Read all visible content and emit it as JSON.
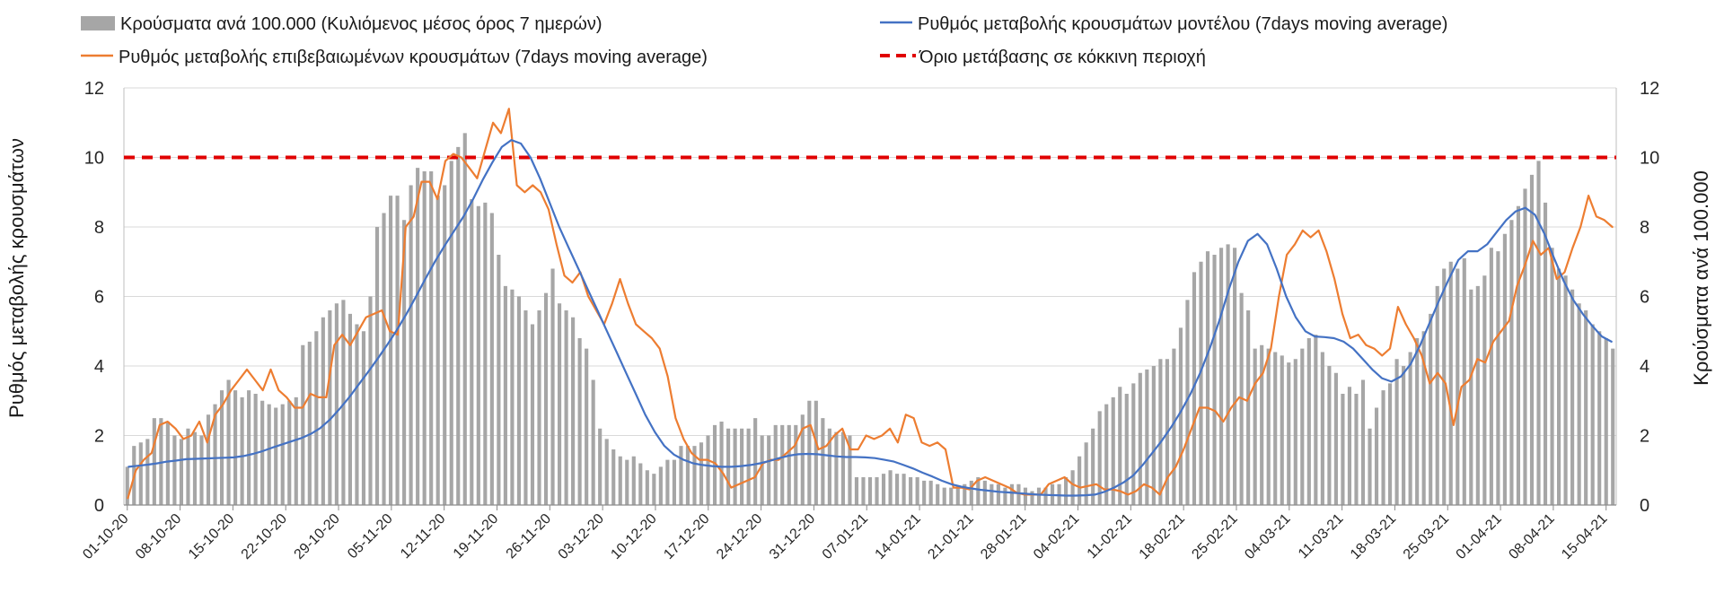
{
  "chart_data": {
    "type": "bar+line",
    "title": "",
    "ylabel_left": "Ρυθμός μεταβολής κρουσμάτων",
    "ylabel_right": "Κρούσματα ανά 100.000",
    "ylim": [
      0,
      12
    ],
    "yticks": [
      0,
      2,
      4,
      6,
      8,
      10,
      12
    ],
    "threshold": 10,
    "colors": {
      "bars": "#a6a6a6",
      "model": "#4472c4",
      "confirmed": "#ed7d31",
      "threshold": "#e00000",
      "grid": "#d9d9d9"
    },
    "legend": [
      {
        "key": "bars",
        "label": "Κρούσματα ανά 100.000 (Κυλιόμενος μέσος όρος 7 ημερών)"
      },
      {
        "key": "model",
        "label": "Ρυθμός μεταβολής κρουσμάτων μοντέλου (7days moving average)"
      },
      {
        "key": "confirmed",
        "label": "Ρυθμός μεταβολής επιβεβαιωμένων κρουσμάτων (7days moving average)"
      },
      {
        "key": "threshold",
        "label": "Όριο μετάβασης σε κόκκινη περιοχή"
      }
    ],
    "x_tick_labels": [
      "01-10-20",
      "08-10-20",
      "15-10-20",
      "22-10-20",
      "29-10-20",
      "05-11-20",
      "12-11-20",
      "19-11-20",
      "26-11-20",
      "03-12-20",
      "10-12-20",
      "17-12-20",
      "24-12-20",
      "31-12-20",
      "07-01-21",
      "14-01-21",
      "21-01-21",
      "28-01-21",
      "04-02-21",
      "11-02-21",
      "18-02-21",
      "25-02-21",
      "04-03-21",
      "11-03-21",
      "18-03-21",
      "25-03-21",
      "01-04-21",
      "08-04-21",
      "15-04-21"
    ],
    "series": [
      {
        "name": "Κρούσματα ανά 100.000 (Κυλιόμενος μέσος όρος 7 ημερών)",
        "kind": "bar",
        "values": [
          1.1,
          1.7,
          1.8,
          1.9,
          2.5,
          2.5,
          2.4,
          2.0,
          1.9,
          2.2,
          2.1,
          2.0,
          2.6,
          2.9,
          3.3,
          3.6,
          3.3,
          3.1,
          3.3,
          3.2,
          3.0,
          2.9,
          2.8,
          2.9,
          3.0,
          3.1,
          4.6,
          4.7,
          5.0,
          5.4,
          5.6,
          5.8,
          5.9,
          5.5,
          5.2,
          5.0,
          6.0,
          8.0,
          8.4,
          8.9,
          8.9,
          8.2,
          9.2,
          9.7,
          9.6,
          9.6,
          8.9,
          9.2,
          9.9,
          10.3,
          10.7,
          8.8,
          8.6,
          8.7,
          8.4,
          7.2,
          6.3,
          6.2,
          6.0,
          5.6,
          5.2,
          5.6,
          6.1,
          6.8,
          5.8,
          5.6,
          5.4,
          4.8,
          4.5,
          3.6,
          2.2,
          1.9,
          1.6,
          1.4,
          1.3,
          1.4,
          1.2,
          1.0,
          0.9,
          1.1,
          1.3,
          1.3,
          1.7,
          1.7,
          1.7,
          1.8,
          2.0,
          2.3,
          2.4,
          2.2,
          2.2,
          2.2,
          2.2,
          2.5,
          2.0,
          2.0,
          2.3,
          2.3,
          2.3,
          2.3,
          2.6,
          3.0,
          3.0,
          2.5,
          2.2,
          2.1,
          2.1,
          2.0,
          0.8,
          0.8,
          0.8,
          0.8,
          0.9,
          1.0,
          0.9,
          0.9,
          0.8,
          0.8,
          0.7,
          0.7,
          0.6,
          0.5,
          0.5,
          0.5,
          0.6,
          0.7,
          0.8,
          0.7,
          0.6,
          0.6,
          0.5,
          0.6,
          0.6,
          0.5,
          0.4,
          0.5,
          0.5,
          0.6,
          0.6,
          0.8,
          1.0,
          1.4,
          1.8,
          2.2,
          2.7,
          2.9,
          3.1,
          3.4,
          3.2,
          3.5,
          3.8,
          3.9,
          4.0,
          4.2,
          4.2,
          4.5,
          5.1,
          5.9,
          6.7,
          7.0,
          7.3,
          7.2,
          7.4,
          7.5,
          7.4,
          6.1,
          5.6,
          4.5,
          4.6,
          4.5,
          4.4,
          4.3,
          4.1,
          4.2,
          4.5,
          4.8,
          4.9,
          4.4,
          4.0,
          3.8,
          3.2,
          3.4,
          3.2,
          3.6,
          2.2,
          2.8,
          3.3,
          3.5,
          4.2,
          4.0,
          4.4,
          4.8,
          5.0,
          5.5,
          6.3,
          6.8,
          7.0,
          6.8,
          7.1,
          6.2,
          6.3,
          6.6,
          7.4,
          7.3,
          7.8,
          8.2,
          8.6,
          9.1,
          9.5,
          9.9,
          8.7,
          7.4,
          6.8,
          6.6,
          6.2,
          5.8,
          5.6,
          5.2,
          5.0,
          4.8,
          4.5
        ]
      },
      {
        "name": "Ρυθμός μεταβολής κρουσμάτων μοντέλου (7days moving average)",
        "kind": "line",
        "values": [
          1.1,
          1.13,
          1.16,
          1.2,
          1.25,
          1.28,
          1.32,
          1.33,
          1.34,
          1.35,
          1.36,
          1.37,
          1.41,
          1.47,
          1.55,
          1.65,
          1.74,
          1.83,
          1.92,
          2.04,
          2.21,
          2.45,
          2.75,
          3.08,
          3.45,
          3.82,
          4.2,
          4.6,
          5.02,
          5.48,
          5.98,
          6.5,
          7.0,
          7.45,
          7.88,
          8.3,
          8.8,
          9.35,
          9.85,
          10.3,
          10.5,
          10.4,
          10.0,
          9.4,
          8.7,
          8.0,
          7.4,
          6.8,
          6.2,
          5.6,
          5.0,
          4.4,
          3.8,
          3.2,
          2.6,
          2.1,
          1.7,
          1.45,
          1.3,
          1.2,
          1.15,
          1.12,
          1.1,
          1.1,
          1.12,
          1.15,
          1.2,
          1.27,
          1.35,
          1.42,
          1.46,
          1.47,
          1.46,
          1.43,
          1.4,
          1.38,
          1.38,
          1.37,
          1.35,
          1.3,
          1.25,
          1.15,
          1.05,
          0.93,
          0.82,
          0.7,
          0.6,
          0.53,
          0.48,
          0.44,
          0.41,
          0.38,
          0.36,
          0.34,
          0.32,
          0.3,
          0.29,
          0.28,
          0.27,
          0.27,
          0.28,
          0.3,
          0.38,
          0.5,
          0.65,
          0.85,
          1.15,
          1.5,
          1.85,
          2.25,
          2.7,
          3.2,
          3.8,
          4.5,
          5.3,
          6.2,
          7.0,
          7.6,
          7.8,
          7.5,
          6.8,
          6.0,
          5.4,
          5.0,
          4.85,
          4.83,
          4.8,
          4.7,
          4.5,
          4.2,
          3.9,
          3.65,
          3.55,
          3.7,
          4.05,
          4.6,
          5.25,
          5.9,
          6.5,
          7.05,
          7.3,
          7.3,
          7.5,
          7.85,
          8.2,
          8.45,
          8.55,
          8.35,
          7.8,
          7.1,
          6.45,
          5.9,
          5.5,
          5.15,
          4.85,
          4.7
        ]
      },
      {
        "name": "Ρυθμός μεταβολής επιβεβαιωμένων κρουσμάτων (7days moving average)",
        "kind": "line",
        "values": [
          0.2,
          1.0,
          1.3,
          1.5,
          2.3,
          2.4,
          2.2,
          1.9,
          2.0,
          2.4,
          1.8,
          2.6,
          2.9,
          3.3,
          3.6,
          3.9,
          3.6,
          3.3,
          3.9,
          3.3,
          3.1,
          2.8,
          2.8,
          3.2,
          3.1,
          3.1,
          4.6,
          4.9,
          4.6,
          5.0,
          5.4,
          5.5,
          5.6,
          5.0,
          4.9,
          8.0,
          8.3,
          9.3,
          9.3,
          8.8,
          9.9,
          10.1,
          10.0,
          9.7,
          9.4,
          10.2,
          11.0,
          10.7,
          11.4,
          9.2,
          9.0,
          9.2,
          9.0,
          8.5,
          7.5,
          6.6,
          6.4,
          6.7,
          6.0,
          5.6,
          5.2,
          5.8,
          6.5,
          5.8,
          5.2,
          5.0,
          4.8,
          4.5,
          3.7,
          2.5,
          1.9,
          1.5,
          1.3,
          1.3,
          1.2,
          0.9,
          0.5,
          0.6,
          0.7,
          0.8,
          1.2,
          1.3,
          1.3,
          1.5,
          1.7,
          2.2,
          2.3,
          1.6,
          1.7,
          2.0,
          2.2,
          1.6,
          1.6,
          2.0,
          1.9,
          2.0,
          2.2,
          1.8,
          2.6,
          2.5,
          1.8,
          1.7,
          1.8,
          1.6,
          0.5,
          0.5,
          0.45,
          0.7,
          0.8,
          0.7,
          0.6,
          0.5,
          0.35,
          0.3,
          0.3,
          0.3,
          0.6,
          0.7,
          0.8,
          0.6,
          0.5,
          0.55,
          0.6,
          0.45,
          0.45,
          0.4,
          0.3,
          0.4,
          0.6,
          0.5,
          0.3,
          0.8,
          1.1,
          1.6,
          2.2,
          2.8,
          2.8,
          2.7,
          2.4,
          2.8,
          3.1,
          3.0,
          3.5,
          3.8,
          4.5,
          6.0,
          7.2,
          7.5,
          7.9,
          7.7,
          7.9,
          7.3,
          6.5,
          5.5,
          4.8,
          4.9,
          4.6,
          4.5,
          4.3,
          4.5,
          5.7,
          5.2,
          4.8,
          4.3,
          3.5,
          3.8,
          3.5,
          2.3,
          3.4,
          3.6,
          4.2,
          4.1,
          4.7,
          5.0,
          5.3,
          6.3,
          6.9,
          7.6,
          7.2,
          7.4,
          6.5,
          6.7,
          7.4,
          8.0,
          8.9,
          8.3,
          8.2,
          8.0
        ]
      },
      {
        "name": "Όριο μετάβασης σε κόκκινη περιοχή",
        "kind": "hline",
        "value": 10
      }
    ]
  }
}
